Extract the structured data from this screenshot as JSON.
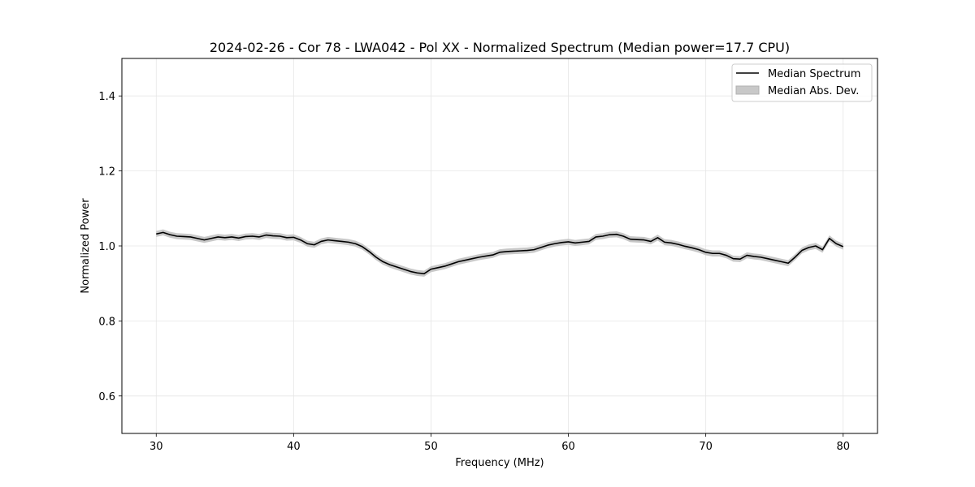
{
  "chart_data": {
    "type": "line",
    "title": "2024-02-26 - Cor 78 - LWA042 - Pol XX - Normalized Spectrum (Median power=17.7 CPU)",
    "xlabel": "Frequency (MHz)",
    "ylabel": "Normalized Power",
    "xlim": [
      27.5,
      82.5
    ],
    "ylim": [
      0.5,
      1.5
    ],
    "xticks": [
      30,
      40,
      50,
      60,
      70,
      80
    ],
    "yticks": [
      0.6,
      0.8,
      1.0,
      1.2,
      1.4
    ],
    "xtick_labels": [
      "30",
      "40",
      "50",
      "60",
      "70",
      "80"
    ],
    "ytick_labels": [
      "0.6",
      "0.8",
      "1.0",
      "1.2",
      "1.4"
    ],
    "grid": true,
    "legend": {
      "placement": "top-right",
      "entries": [
        "Median Spectrum",
        "Median Abs. Dev."
      ]
    },
    "series": [
      {
        "name": "Median Spectrum",
        "color": "#000000",
        "x": [
          30,
          30.5,
          31,
          31.5,
          32,
          32.5,
          33,
          33.5,
          34,
          34.5,
          35,
          35.5,
          36,
          36.5,
          37,
          37.5,
          38,
          38.5,
          39,
          39.5,
          40,
          40.5,
          41,
          41.5,
          42,
          42.5,
          43,
          43.5,
          44,
          44.5,
          45,
          45.5,
          46,
          46.5,
          47,
          47.5,
          48,
          48.5,
          49,
          49.5,
          50,
          50.5,
          51,
          51.5,
          52,
          52.5,
          53,
          53.5,
          54,
          54.5,
          55,
          55.5,
          56,
          56.5,
          57,
          57.5,
          58,
          58.5,
          59,
          59.5,
          60,
          60.5,
          61,
          61.5,
          62,
          62.5,
          63,
          63.5,
          64,
          64.5,
          65,
          65.5,
          66,
          66.5,
          67,
          67.5,
          68,
          68.5,
          69,
          69.5,
          70,
          70.5,
          71,
          71.5,
          72,
          72.5,
          73,
          73.5,
          74,
          74.5,
          75,
          75.5,
          76,
          76.5,
          77,
          77.5,
          78,
          78.5,
          79,
          79.5,
          80
        ],
        "y": [
          1.032,
          1.036,
          1.03,
          1.026,
          1.025,
          1.024,
          1.02,
          1.016,
          1.02,
          1.024,
          1.022,
          1.024,
          1.021,
          1.025,
          1.026,
          1.024,
          1.029,
          1.027,
          1.026,
          1.022,
          1.023,
          1.016,
          1.006,
          1.003,
          1.012,
          1.016,
          1.014,
          1.012,
          1.01,
          1.006,
          0.998,
          0.985,
          0.97,
          0.958,
          0.95,
          0.944,
          0.938,
          0.932,
          0.928,
          0.926,
          0.938,
          0.942,
          0.946,
          0.952,
          0.958,
          0.962,
          0.966,
          0.97,
          0.973,
          0.976,
          0.983,
          0.985,
          0.986,
          0.987,
          0.988,
          0.99,
          0.996,
          1.002,
          1.006,
          1.009,
          1.011,
          1.008,
          1.01,
          1.012,
          1.024,
          1.026,
          1.03,
          1.031,
          1.026,
          1.018,
          1.017,
          1.016,
          1.012,
          1.022,
          1.01,
          1.008,
          1.004,
          0.999,
          0.995,
          0.99,
          0.983,
          0.98,
          0.98,
          0.975,
          0.966,
          0.965,
          0.975,
          0.972,
          0.97,
          0.966,
          0.962,
          0.958,
          0.954,
          0.97,
          0.988,
          0.996,
          1.0,
          0.99,
          1.02,
          1.006,
          0.998
        ]
      },
      {
        "name": "Median Abs. Dev.",
        "color": "#c8c8c8",
        "band_half_width": 0.008
      }
    ]
  }
}
